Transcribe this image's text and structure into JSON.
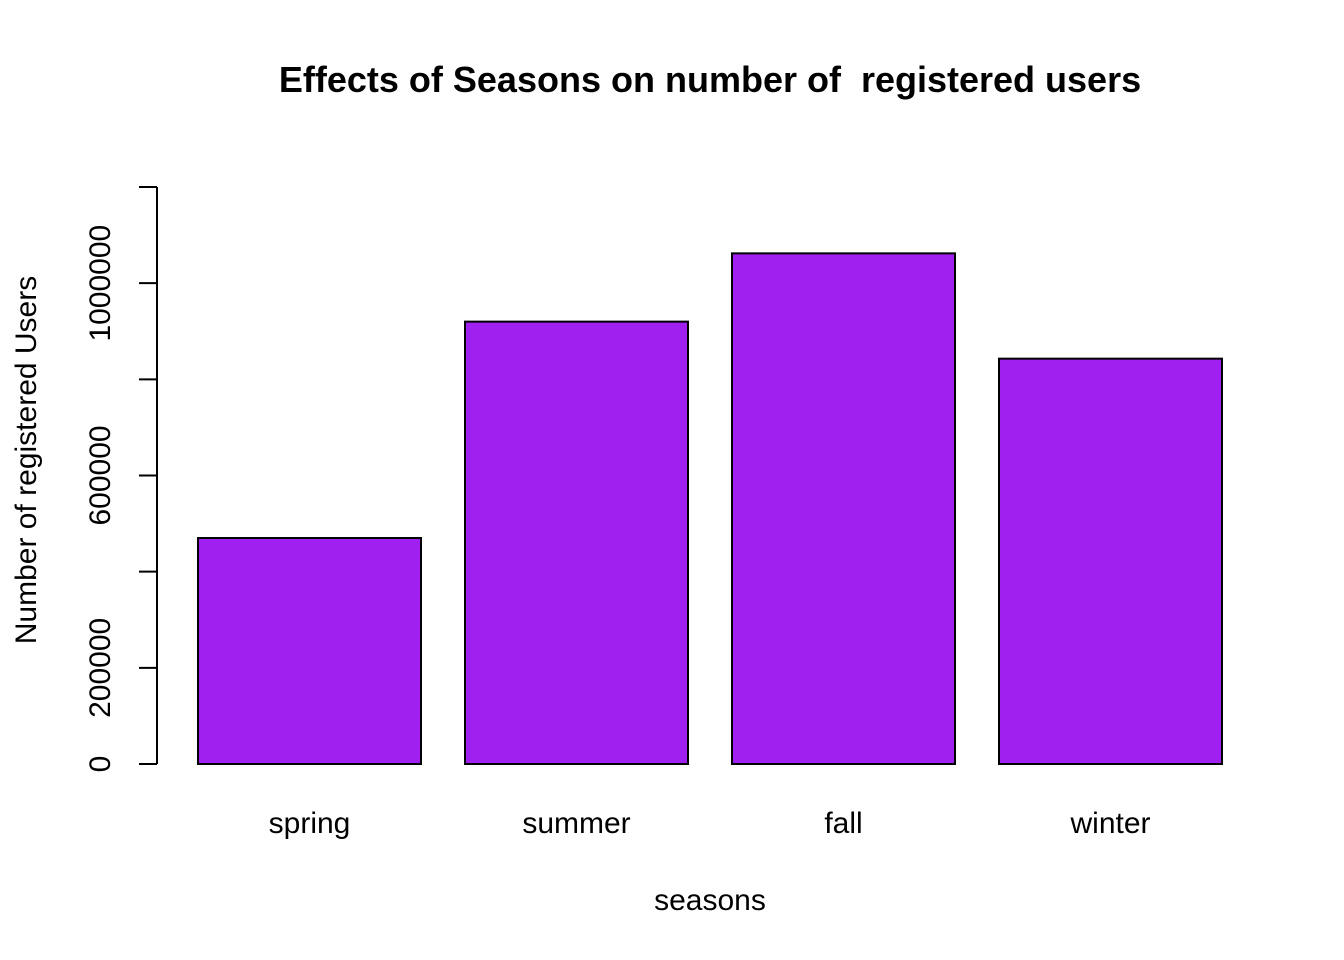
{
  "chart_data": {
    "type": "bar",
    "title": "Effects of Seasons on number of  registered users",
    "xlabel": "seasons",
    "ylabel": "Number of registered Users",
    "categories": [
      "spring",
      "summer",
      "fall",
      "winter"
    ],
    "values": [
      470000,
      920000,
      1062000,
      843000
    ],
    "ylim": [
      0,
      1200000
    ],
    "yticks": [
      0,
      200000,
      400000,
      600000,
      800000,
      1000000,
      1200000
    ],
    "ytick_labels": [
      "0",
      "200000",
      "",
      "600000",
      "",
      "1000000",
      ""
    ],
    "bar_color": "#a020f0",
    "grid": false,
    "legend": "none"
  }
}
